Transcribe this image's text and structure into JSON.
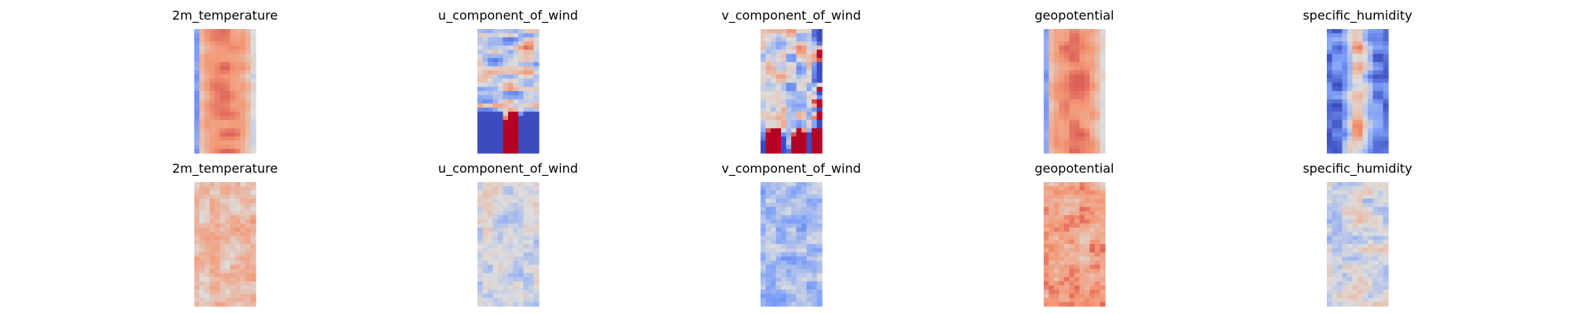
{
  "figure": {
    "rows": 2,
    "cols": 5,
    "colormap": "coolwarm",
    "axes_visible": false
  },
  "chart_data": [
    {
      "type": "heatmap",
      "title": "2m_temperature",
      "pattern": "warm-core"
    },
    {
      "type": "heatmap",
      "title": "u_component_of_wind",
      "pattern": "streaks"
    },
    {
      "type": "heatmap",
      "title": "v_component_of_wind",
      "pattern": "mottled"
    },
    {
      "type": "heatmap",
      "title": "geopotential",
      "pattern": "warm-core"
    },
    {
      "type": "heatmap",
      "title": "specific_humidity",
      "pattern": "cold-edges"
    },
    {
      "type": "heatmap",
      "title": "2m_temperature",
      "pattern": "warm-noise"
    },
    {
      "type": "heatmap",
      "title": "u_component_of_wind",
      "pattern": "light-noise"
    },
    {
      "type": "heatmap",
      "title": "v_component_of_wind",
      "pattern": "cool-noise"
    },
    {
      "type": "heatmap",
      "title": "geopotential",
      "pattern": "warm-noise-strong"
    },
    {
      "type": "heatmap",
      "title": "specific_humidity",
      "pattern": "light-noise"
    }
  ]
}
